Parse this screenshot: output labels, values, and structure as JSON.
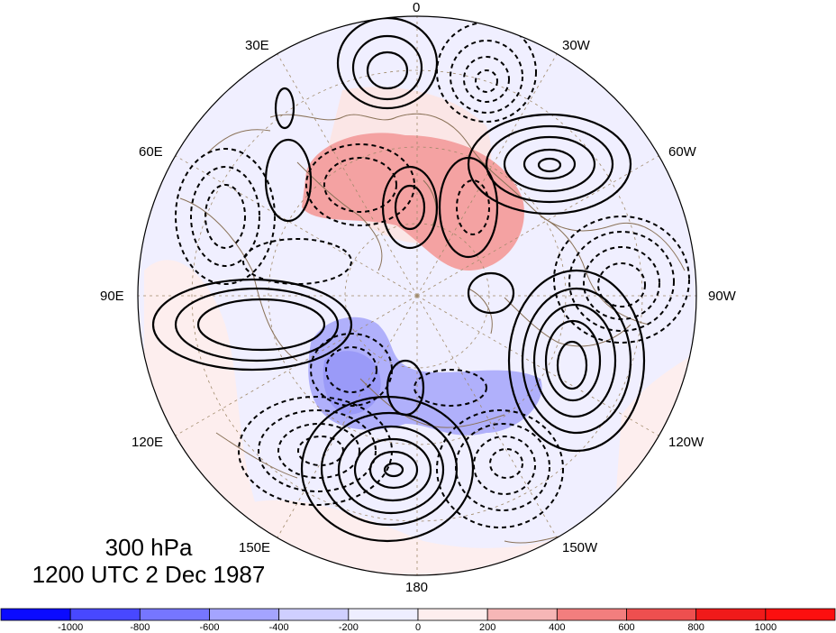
{
  "map": {
    "projection": "north-polar-stereographic",
    "longitude_labels": [
      "0",
      "30W",
      "60W",
      "90W",
      "120W",
      "150W",
      "180",
      "150E",
      "120E",
      "90E",
      "60E",
      "30E"
    ]
  },
  "caption": {
    "level": "300 hPa",
    "datetime": "1200 UTC 2 Dec 1987"
  },
  "colorbar": {
    "ticks": [
      "-1000",
      "-800",
      "-600",
      "-400",
      "-200",
      "0",
      "200",
      "400",
      "600",
      "800",
      "1000"
    ],
    "colors": [
      "#0b0bff",
      "#4848ff",
      "#7676ff",
      "#a4a4ff",
      "#cfcfff",
      "#eeeeff",
      "#fdeeee",
      "#f6b6b6",
      "#f27e7e",
      "#ee4f4f",
      "#f01a1a",
      "#fc0f0f"
    ]
  }
}
